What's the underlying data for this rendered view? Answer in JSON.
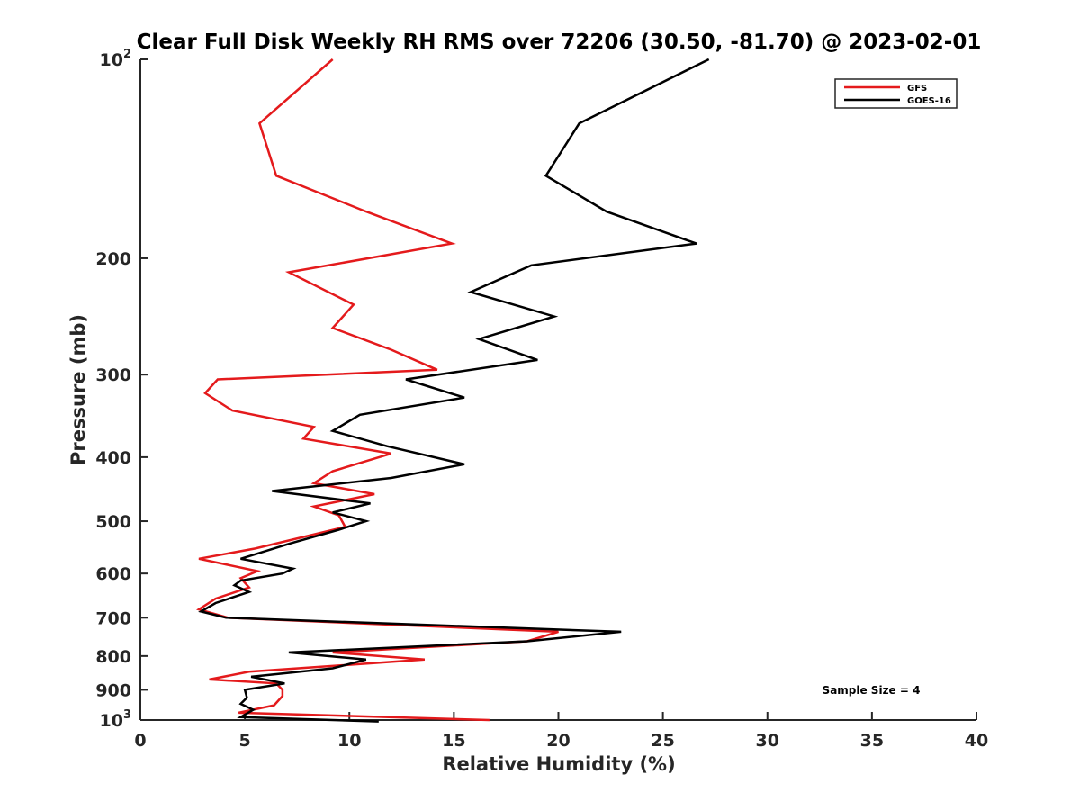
{
  "chart_data": {
    "type": "line",
    "title": "Clear Full Disk Weekly RH RMS over 72206 (30.50, -81.70) @ 2023-02-01",
    "xlabel": "Relative Humidity (%)",
    "ylabel": "Pressure (mb)",
    "xlim": [
      0,
      40
    ],
    "ylim": [
      100,
      1000
    ],
    "y_scale": "log",
    "y_reversed": true,
    "grid": false,
    "legend_position": "top-right",
    "x_ticks": [
      {
        "value": 0,
        "label": "0"
      },
      {
        "value": 5,
        "label": "5"
      },
      {
        "value": 10,
        "label": "10"
      },
      {
        "value": 15,
        "label": "15"
      },
      {
        "value": 20,
        "label": "20"
      },
      {
        "value": 25,
        "label": "25"
      },
      {
        "value": 30,
        "label": "30"
      },
      {
        "value": 35,
        "label": "35"
      },
      {
        "value": 40,
        "label": "40"
      }
    ],
    "y_ticks": [
      {
        "value": 100,
        "base": "10",
        "exp": "2"
      },
      {
        "value": 200,
        "label": "200"
      },
      {
        "value": 300,
        "label": "300"
      },
      {
        "value": 400,
        "label": "400"
      },
      {
        "value": 500,
        "label": "500"
      },
      {
        "value": 600,
        "label": "600"
      },
      {
        "value": 700,
        "label": "700"
      },
      {
        "value": 800,
        "label": "800"
      },
      {
        "value": 900,
        "label": "900"
      },
      {
        "value": 1000,
        "base": "10",
        "exp": "3"
      }
    ],
    "annotation": "Sample Size = 4",
    "series": [
      {
        "name": "GFS",
        "color": "#e41a1c",
        "points": [
          [
            9.2,
            100
          ],
          [
            5.7,
            125
          ],
          [
            6.5,
            150
          ],
          [
            10.8,
            170
          ],
          [
            14.9,
            190
          ],
          [
            7.1,
            210
          ],
          [
            10.2,
            235
          ],
          [
            9.2,
            255
          ],
          [
            12.0,
            275
          ],
          [
            14.2,
            295
          ],
          [
            3.7,
            305
          ],
          [
            3.1,
            320
          ],
          [
            4.4,
            340
          ],
          [
            8.3,
            360
          ],
          [
            7.8,
            375
          ],
          [
            12.0,
            395
          ],
          [
            9.2,
            420
          ],
          [
            8.3,
            438
          ],
          [
            11.2,
            455
          ],
          [
            8.3,
            475
          ],
          [
            9.5,
            490
          ],
          [
            9.8,
            510
          ],
          [
            5.5,
            550
          ],
          [
            2.8,
            570
          ],
          [
            5.6,
            595
          ],
          [
            4.8,
            610
          ],
          [
            5.2,
            630
          ],
          [
            3.6,
            655
          ],
          [
            2.8,
            680
          ],
          [
            4.2,
            700
          ],
          [
            20.0,
            735
          ],
          [
            18.5,
            760
          ],
          [
            9.2,
            790
          ],
          [
            13.6,
            810
          ],
          [
            5.2,
            845
          ],
          [
            3.3,
            868
          ],
          [
            6.5,
            880
          ],
          [
            6.8,
            900
          ],
          [
            6.8,
            920
          ],
          [
            6.4,
            950
          ],
          [
            4.7,
            975
          ],
          [
            16.7,
            1000
          ]
        ]
      },
      {
        "name": "GOES-16",
        "color": "#000000",
        "points": [
          [
            27.2,
            100
          ],
          [
            21.0,
            125
          ],
          [
            19.4,
            150
          ],
          [
            22.3,
            170
          ],
          [
            26.6,
            190
          ],
          [
            18.7,
            205
          ],
          [
            15.8,
            225
          ],
          [
            19.8,
            245
          ],
          [
            16.2,
            265
          ],
          [
            19.0,
            285
          ],
          [
            12.7,
            305
          ],
          [
            15.5,
            325
          ],
          [
            10.5,
            345
          ],
          [
            9.2,
            365
          ],
          [
            11.8,
            385
          ],
          [
            15.5,
            410
          ],
          [
            12.0,
            430
          ],
          [
            6.3,
            450
          ],
          [
            11.0,
            470
          ],
          [
            9.2,
            485
          ],
          [
            10.8,
            500
          ],
          [
            9.5,
            515
          ],
          [
            7.2,
            540
          ],
          [
            4.8,
            570
          ],
          [
            7.3,
            590
          ],
          [
            6.8,
            600
          ],
          [
            4.8,
            615
          ],
          [
            4.5,
            625
          ],
          [
            5.2,
            640
          ],
          [
            3.6,
            665
          ],
          [
            2.9,
            685
          ],
          [
            4.1,
            700
          ],
          [
            23.0,
            735
          ],
          [
            18.5,
            760
          ],
          [
            7.1,
            790
          ],
          [
            10.8,
            810
          ],
          [
            9.2,
            835
          ],
          [
            5.3,
            860
          ],
          [
            6.9,
            880
          ],
          [
            5.0,
            900
          ],
          [
            5.1,
            925
          ],
          [
            4.8,
            945
          ],
          [
            5.4,
            965
          ],
          [
            4.8,
            990
          ],
          [
            11.4,
            1005
          ]
        ]
      }
    ]
  }
}
